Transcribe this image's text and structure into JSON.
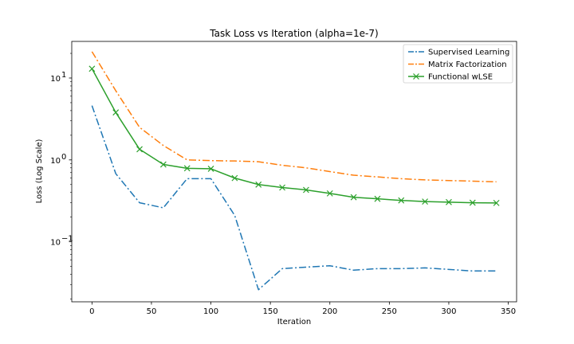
{
  "chart_data": {
    "type": "line",
    "title": "Task Loss vs Iteration (alpha=1e-7)",
    "xlabel": "Iteration",
    "ylabel": "Loss (Log Scale)",
    "xscale": "linear",
    "yscale": "log",
    "xlim": [
      -17,
      357
    ],
    "ylim": [
      0.0185,
      28
    ],
    "xticks": [
      0,
      50,
      100,
      150,
      200,
      250,
      300,
      350
    ],
    "xtick_labels": [
      "0",
      "50",
      "100",
      "150",
      "200",
      "250",
      "300",
      "350"
    ],
    "yticks": [
      0.1,
      1,
      10
    ],
    "ytick_labels": [
      "10",
      "10",
      "10"
    ],
    "ytick_exponents": [
      "−1",
      "0",
      "1"
    ],
    "legend_position": "upper-right",
    "grid": false,
    "x": [
      0,
      20,
      40,
      60,
      80,
      100,
      120,
      140,
      160,
      180,
      200,
      220,
      240,
      260,
      280,
      300,
      320,
      340
    ],
    "series": [
      {
        "name": "Supervised Learning",
        "color": "#1f77b4",
        "linestyle": "dashdot",
        "marker": "none",
        "values": [
          4.6,
          0.68,
          0.3,
          0.26,
          0.59,
          0.59,
          0.21,
          0.026,
          0.047,
          0.049,
          0.051,
          0.045,
          0.047,
          0.047,
          0.048,
          0.046,
          0.044,
          0.044
        ]
      },
      {
        "name": "Matrix Factorization",
        "color": "#ff7f0e",
        "linestyle": "dashdot",
        "marker": "none",
        "values": [
          21,
          7.0,
          2.5,
          1.5,
          1.0,
          0.98,
          0.97,
          0.95,
          0.86,
          0.8,
          0.72,
          0.65,
          0.62,
          0.59,
          0.57,
          0.56,
          0.55,
          0.54
        ]
      },
      {
        "name": "Functional wLSE",
        "color": "#2ca02c",
        "linestyle": "solid",
        "marker": "x",
        "values": [
          13,
          3.8,
          1.35,
          0.88,
          0.79,
          0.78,
          0.6,
          0.5,
          0.46,
          0.43,
          0.39,
          0.35,
          0.335,
          0.32,
          0.31,
          0.305,
          0.3,
          0.298
        ]
      }
    ]
  }
}
